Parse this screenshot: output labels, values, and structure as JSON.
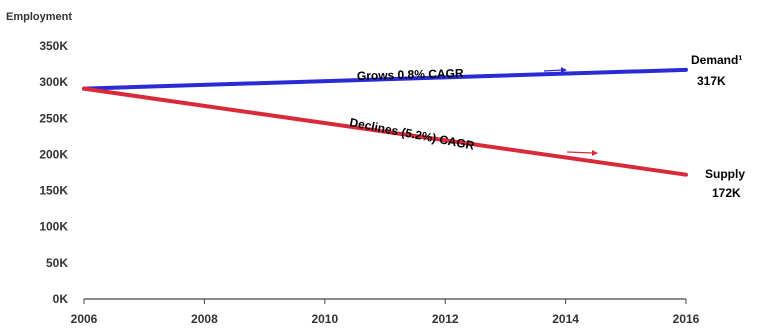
{
  "chart_data": {
    "type": "line",
    "title": "",
    "ylabel": "Employment",
    "xlabel": "",
    "x": [
      2006,
      2016
    ],
    "x_ticks": [
      "2006",
      "2008",
      "2010",
      "2012",
      "2014",
      "2016"
    ],
    "y_ticks": [
      "0K",
      "50K",
      "100K",
      "150K",
      "200K",
      "250K",
      "300K",
      "350K"
    ],
    "ylim": [
      0,
      350
    ],
    "xlim": [
      2006,
      2016
    ],
    "grid": false,
    "series": [
      {
        "key": "demand",
        "name": "Demand¹",
        "values": [
          291,
          317
        ],
        "end_value_label": "317K",
        "annotation": "Grows 0.8% CAGR",
        "color": "#2b2bd6"
      },
      {
        "key": "supply",
        "name": "Supply",
        "values": [
          291,
          172
        ],
        "end_value_label": "172K",
        "annotation": "Declines (5.2%) CAGR",
        "color": "#d82a3a"
      }
    ]
  }
}
